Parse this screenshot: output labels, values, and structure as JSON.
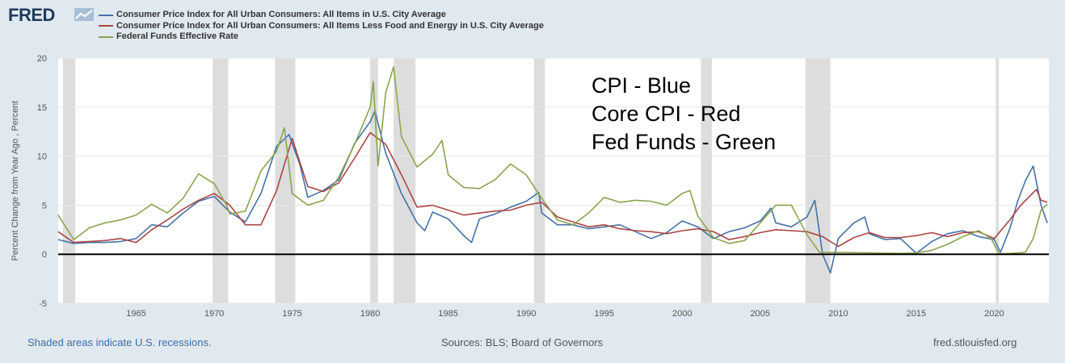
{
  "header": {
    "logo_text": "FRED",
    "logo_icon": "chart-line-icon"
  },
  "colors": {
    "cpi": "#4572a7",
    "core": "#aa4643",
    "fed": "#89a54e",
    "recession": "#dddddd"
  },
  "footer": {
    "left": "Shaded areas indicate U.S. recessions.",
    "middle": "Sources: BLS; Board of Governors",
    "right": "fred.stlouisfed.org"
  },
  "chart_data": {
    "type": "line",
    "title": "",
    "annotations": [
      "CPI - Blue",
      "Core CPI - Red",
      "Fed Funds - Green"
    ],
    "ylabel": "Percent Change from Year Ago , Percent",
    "xlabel": "",
    "xlim": [
      1960.0,
      2023.5
    ],
    "ylim": [
      -5,
      20
    ],
    "yticks": [
      -5,
      0,
      5,
      10,
      15,
      20
    ],
    "xticks": [
      1965,
      1970,
      1975,
      1980,
      1985,
      1990,
      1995,
      2000,
      2005,
      2010,
      2015,
      2020
    ],
    "recessions": [
      [
        1960.3,
        1961.1
      ],
      [
        1969.9,
        1970.9
      ],
      [
        1973.9,
        1975.2
      ],
      [
        1980.0,
        1980.5
      ],
      [
        1981.5,
        1982.9
      ],
      [
        1990.5,
        1991.2
      ],
      [
        2001.2,
        2001.9
      ],
      [
        2007.9,
        2009.5
      ],
      [
        2020.1,
        2020.3
      ]
    ],
    "series": [
      {
        "name": "Consumer Price Index for All Urban Consumers: All Items in U.S. City Average",
        "color": "#4572a7",
        "points": [
          [
            1960,
            1.5
          ],
          [
            1961,
            1.1
          ],
          [
            1962,
            1.2
          ],
          [
            1963,
            1.2
          ],
          [
            1964,
            1.3
          ],
          [
            1965,
            1.6
          ],
          [
            1966,
            3.0
          ],
          [
            1967,
            2.8
          ],
          [
            1968,
            4.2
          ],
          [
            1969,
            5.4
          ],
          [
            1970,
            5.9
          ],
          [
            1971,
            4.3
          ],
          [
            1972,
            3.3
          ],
          [
            1973,
            6.2
          ],
          [
            1974,
            11.0
          ],
          [
            1974.8,
            12.2
          ],
          [
            1975.5,
            9.1
          ],
          [
            1976,
            5.8
          ],
          [
            1977,
            6.5
          ],
          [
            1978,
            7.6
          ],
          [
            1979,
            11.3
          ],
          [
            1980,
            13.5
          ],
          [
            1980.3,
            14.6
          ],
          [
            1981,
            10.3
          ],
          [
            1982,
            6.2
          ],
          [
            1983,
            3.2
          ],
          [
            1983.5,
            2.4
          ],
          [
            1984,
            4.3
          ],
          [
            1985,
            3.6
          ],
          [
            1986,
            1.9
          ],
          [
            1986.5,
            1.2
          ],
          [
            1987,
            3.6
          ],
          [
            1988,
            4.1
          ],
          [
            1989,
            4.8
          ],
          [
            1990,
            5.4
          ],
          [
            1990.8,
            6.3
          ],
          [
            1991,
            4.2
          ],
          [
            1992,
            3.0
          ],
          [
            1993,
            3.0
          ],
          [
            1994,
            2.6
          ],
          [
            1995,
            2.8
          ],
          [
            1996,
            3.0
          ],
          [
            1997,
            2.3
          ],
          [
            1998,
            1.6
          ],
          [
            1999,
            2.2
          ],
          [
            2000,
            3.4
          ],
          [
            2001,
            2.8
          ],
          [
            2002,
            1.6
          ],
          [
            2003,
            2.3
          ],
          [
            2004,
            2.7
          ],
          [
            2005,
            3.4
          ],
          [
            2005.7,
            4.7
          ],
          [
            2006,
            3.2
          ],
          [
            2007,
            2.8
          ],
          [
            2008,
            3.8
          ],
          [
            2008.5,
            5.5
          ],
          [
            2009,
            0.0
          ],
          [
            2009.5,
            -1.9
          ],
          [
            2010,
            1.6
          ],
          [
            2011,
            3.2
          ],
          [
            2011.7,
            3.8
          ],
          [
            2012,
            2.1
          ],
          [
            2013,
            1.5
          ],
          [
            2014,
            1.6
          ],
          [
            2015,
            0.1
          ],
          [
            2016,
            1.3
          ],
          [
            2017,
            2.1
          ],
          [
            2018,
            2.4
          ],
          [
            2019,
            1.8
          ],
          [
            2020,
            1.5
          ],
          [
            2020.4,
            0.2
          ],
          [
            2021,
            2.6
          ],
          [
            2021.5,
            5.4
          ],
          [
            2022,
            7.5
          ],
          [
            2022.5,
            9.0
          ],
          [
            2023,
            5.0
          ],
          [
            2023.4,
            3.2
          ]
        ]
      },
      {
        "name": "Consumer Price Index for All Urban Consumers: All Items Less Food and Energy in U.S. City Average",
        "color": "#aa4643",
        "points": [
          [
            1960,
            2.3
          ],
          [
            1961,
            1.2
          ],
          [
            1962,
            1.3
          ],
          [
            1963,
            1.4
          ],
          [
            1964,
            1.6
          ],
          [
            1965,
            1.2
          ],
          [
            1966,
            2.5
          ],
          [
            1967,
            3.5
          ],
          [
            1968,
            4.6
          ],
          [
            1969,
            5.5
          ],
          [
            1970,
            6.2
          ],
          [
            1971,
            5.0
          ],
          [
            1972,
            3.0
          ],
          [
            1973,
            3.0
          ],
          [
            1974,
            6.5
          ],
          [
            1975,
            11.8
          ],
          [
            1976,
            6.9
          ],
          [
            1977,
            6.4
          ],
          [
            1978,
            7.3
          ],
          [
            1979,
            9.8
          ],
          [
            1980,
            12.4
          ],
          [
            1981,
            11.2
          ],
          [
            1982,
            8.1
          ],
          [
            1983,
            4.8
          ],
          [
            1984,
            5.0
          ],
          [
            1985,
            4.5
          ],
          [
            1986,
            4.0
          ],
          [
            1987,
            4.2
          ],
          [
            1988,
            4.4
          ],
          [
            1989,
            4.5
          ],
          [
            1990,
            5.0
          ],
          [
            1991,
            5.3
          ],
          [
            1992,
            3.8
          ],
          [
            1993,
            3.3
          ],
          [
            1994,
            2.8
          ],
          [
            1995,
            3.0
          ],
          [
            1996,
            2.6
          ],
          [
            1997,
            2.4
          ],
          [
            1998,
            2.3
          ],
          [
            1999,
            2.1
          ],
          [
            2000,
            2.4
          ],
          [
            2001,
            2.6
          ],
          [
            2002,
            2.3
          ],
          [
            2003,
            1.5
          ],
          [
            2004,
            1.8
          ],
          [
            2005,
            2.2
          ],
          [
            2006,
            2.5
          ],
          [
            2007,
            2.4
          ],
          [
            2008,
            2.3
          ],
          [
            2009,
            1.8
          ],
          [
            2010,
            0.8
          ],
          [
            2011,
            1.7
          ],
          [
            2012,
            2.2
          ],
          [
            2013,
            1.7
          ],
          [
            2014,
            1.7
          ],
          [
            2015,
            1.9
          ],
          [
            2016,
            2.2
          ],
          [
            2017,
            1.8
          ],
          [
            2018,
            2.2
          ],
          [
            2019,
            2.3
          ],
          [
            2020,
            1.6
          ],
          [
            2021,
            3.5
          ],
          [
            2021.7,
            5.0
          ],
          [
            2022.7,
            6.6
          ],
          [
            2023,
            5.5
          ],
          [
            2023.4,
            5.3
          ]
        ]
      },
      {
        "name": "Federal Funds Effective Rate",
        "color": "#89a54e",
        "points": [
          [
            1960,
            4.0
          ],
          [
            1960.8,
            2.0
          ],
          [
            1961,
            1.5
          ],
          [
            1962,
            2.7
          ],
          [
            1963,
            3.2
          ],
          [
            1964,
            3.5
          ],
          [
            1965,
            4.0
          ],
          [
            1966,
            5.1
          ],
          [
            1967,
            4.2
          ],
          [
            1968,
            5.7
          ],
          [
            1969,
            8.2
          ],
          [
            1970,
            7.2
          ],
          [
            1970.8,
            5.0
          ],
          [
            1971,
            4.1
          ],
          [
            1972,
            4.4
          ],
          [
            1973,
            8.5
          ],
          [
            1974,
            10.5
          ],
          [
            1974.5,
            12.9
          ],
          [
            1975,
            6.2
          ],
          [
            1976,
            5.0
          ],
          [
            1977,
            5.5
          ],
          [
            1978,
            7.9
          ],
          [
            1979,
            11.2
          ],
          [
            1980,
            15.0
          ],
          [
            1980.2,
            17.6
          ],
          [
            1980.5,
            9.0
          ],
          [
            1981,
            16.5
          ],
          [
            1981.5,
            19.1
          ],
          [
            1982,
            12.0
          ],
          [
            1983,
            8.9
          ],
          [
            1984,
            10.2
          ],
          [
            1984.6,
            11.6
          ],
          [
            1985,
            8.1
          ],
          [
            1986,
            6.8
          ],
          [
            1987,
            6.7
          ],
          [
            1988,
            7.6
          ],
          [
            1989,
            9.2
          ],
          [
            1990,
            8.1
          ],
          [
            1991,
            5.7
          ],
          [
            1992,
            3.5
          ],
          [
            1993,
            3.0
          ],
          [
            1994,
            4.2
          ],
          [
            1995,
            5.8
          ],
          [
            1996,
            5.3
          ],
          [
            1997,
            5.5
          ],
          [
            1998,
            5.4
          ],
          [
            1999,
            5.0
          ],
          [
            2000,
            6.2
          ],
          [
            2000.5,
            6.5
          ],
          [
            2001,
            3.9
          ],
          [
            2002,
            1.7
          ],
          [
            2003,
            1.1
          ],
          [
            2004,
            1.4
          ],
          [
            2005,
            3.2
          ],
          [
            2006,
            5.0
          ],
          [
            2007,
            5.0
          ],
          [
            2008,
            2.0
          ],
          [
            2008.8,
            0.2
          ],
          [
            2010,
            0.2
          ],
          [
            2012,
            0.15
          ],
          [
            2014,
            0.1
          ],
          [
            2015,
            0.13
          ],
          [
            2016,
            0.4
          ],
          [
            2017,
            1.0
          ],
          [
            2018,
            1.8
          ],
          [
            2019,
            2.4
          ],
          [
            2019.8,
            1.6
          ],
          [
            2020,
            1.0
          ],
          [
            2020.3,
            0.05
          ],
          [
            2021,
            0.08
          ],
          [
            2022,
            0.2
          ],
          [
            2022.5,
            1.6
          ],
          [
            2023,
            4.5
          ],
          [
            2023.4,
            5.1
          ]
        ]
      }
    ]
  }
}
